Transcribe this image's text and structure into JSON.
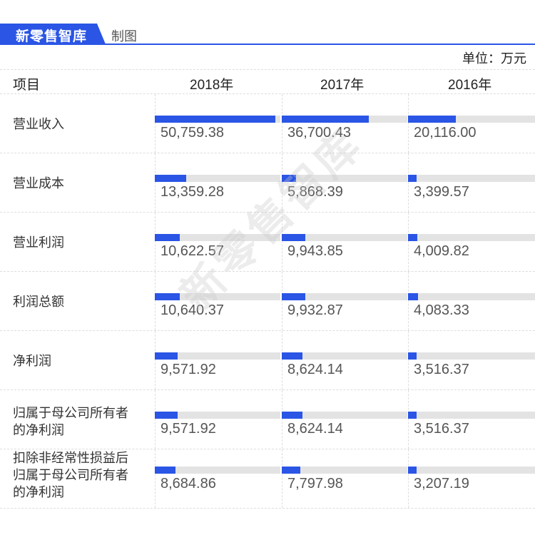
{
  "header": {
    "brand": "新零售智库",
    "subtitle": "制图",
    "accent": "#2a55e5"
  },
  "unit_label": "单位：万元",
  "watermark": "新零售智库",
  "table": {
    "columns": [
      "项目",
      "2018年",
      "2017年",
      "2016年"
    ],
    "rows": [
      {
        "label": "营业收入",
        "values": [
          "50,759.38",
          "36,700.43",
          "20,116.00"
        ]
      },
      {
        "label": "营业成本",
        "values": [
          "13,359.28",
          "5,868.39",
          "3,399.57"
        ]
      },
      {
        "label": "营业利润",
        "values": [
          "10,622.57",
          "9,943.85",
          "4,009.82"
        ]
      },
      {
        "label": "利润总额",
        "values": [
          "10,640.37",
          "9,932.87",
          "4,083.33"
        ]
      },
      {
        "label": "净利润",
        "values": [
          "9,571.92",
          "8,624.14",
          "3,516.37"
        ]
      },
      {
        "label": "归属于母公司所有者的净利润",
        "label_lines": [
          "归属于母公司所有者",
          "的净利润"
        ],
        "values": [
          "9,571.92",
          "8,624.14",
          "3,516.37"
        ]
      },
      {
        "label": "扣除非经常性损益后归属于母公司所有者的净利润",
        "label_lines": [
          "扣除非经常性损益后",
          "归属于母公司所有者",
          "的净利润"
        ],
        "values": [
          "8,684.86",
          "7,797.98",
          "3,207.19"
        ]
      }
    ]
  },
  "chart_data": {
    "type": "bar",
    "title": "",
    "unit": "万元",
    "categories": [
      "营业收入",
      "营业成本",
      "营业利润",
      "利润总额",
      "净利润",
      "归属于母公司所有者的净利润",
      "扣除非经常性损益后归属于母公司所有者的净利润"
    ],
    "series": [
      {
        "name": "2018年",
        "values": [
          50759.38,
          13359.28,
          10622.57,
          10640.37,
          9571.92,
          9571.92,
          8684.86
        ]
      },
      {
        "name": "2017年",
        "values": [
          36700.43,
          5868.39,
          9943.85,
          9932.87,
          8624.14,
          8624.14,
          7797.98
        ]
      },
      {
        "name": "2016年",
        "values": [
          20116.0,
          3399.57,
          4009.82,
          4083.33,
          3516.37,
          3516.37,
          3207.19
        ]
      }
    ],
    "xlabel": "",
    "ylabel": "万元"
  }
}
